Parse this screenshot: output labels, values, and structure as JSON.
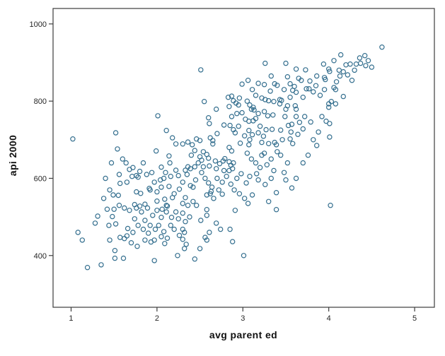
{
  "chart_data": {
    "type": "scatter",
    "title": "",
    "xlabel": "avg parent ed",
    "ylabel": "api 2000",
    "x_ticks": [
      1,
      2,
      3,
      4,
      5
    ],
    "y_ticks": [
      400,
      600,
      800,
      1000
    ],
    "xlim": [
      0.79,
      5.23
    ],
    "ylim": [
      266,
      1040
    ],
    "grid": false,
    "legend": "none",
    "frame_color": "#3d3d3d",
    "marker": {
      "shape": "circle-open",
      "color": "#336e8e",
      "radius": 3.1,
      "stroke_width": 1.2
    },
    "points": [
      [
        2.51,
        881
      ],
      [
        2.55,
        799
      ],
      [
        3.26,
        898
      ],
      [
        3.33,
        865
      ],
      [
        2.99,
        844
      ],
      [
        3.06,
        854
      ],
      [
        3.11,
        830
      ],
      [
        3.18,
        846
      ],
      [
        3.25,
        843
      ],
      [
        3.32,
        826
      ],
      [
        3.37,
        845
      ],
      [
        3.4,
        841
      ],
      [
        3.43,
        804
      ],
      [
        3.45,
        802
      ],
      [
        3.5,
        898
      ],
      [
        3.52,
        863
      ],
      [
        3.62,
        883
      ],
      [
        3.65,
        859
      ],
      [
        3.68,
        854
      ],
      [
        3.73,
        881
      ],
      [
        3.58,
        828
      ],
      [
        3.62,
        823
      ],
      [
        3.74,
        832
      ],
      [
        2.83,
        810
      ],
      [
        2.87,
        813
      ],
      [
        2.89,
        801
      ],
      [
        2.92,
        795
      ],
      [
        2.96,
        808
      ],
      [
        2.84,
        786
      ],
      [
        3.12,
        784
      ],
      [
        3.26,
        804
      ],
      [
        3.3,
        801
      ],
      [
        3.36,
        799
      ],
      [
        3.43,
        793
      ],
      [
        3.61,
        788
      ],
      [
        4.62,
        940
      ],
      [
        4.14,
        920
      ],
      [
        4.36,
        912
      ],
      [
        4.42,
        918
      ],
      [
        4.32,
        896
      ],
      [
        4.25,
        896
      ],
      [
        3.94,
        896
      ],
      [
        4.06,
        905
      ],
      [
        4.0,
        883
      ],
      [
        4.01,
        877
      ],
      [
        3.86,
        865
      ],
      [
        3.95,
        861
      ],
      [
        3.96,
        856
      ],
      [
        4.09,
        850
      ],
      [
        4.13,
        865
      ],
      [
        4.17,
        876
      ],
      [
        4.43,
        892
      ],
      [
        4.27,
        854
      ],
      [
        4.06,
        835
      ],
      [
        4.08,
        830
      ],
      [
        3.77,
        832
      ],
      [
        3.82,
        824
      ],
      [
        4.17,
        812
      ],
      [
        4.03,
        799
      ],
      [
        4.0,
        793
      ],
      [
        4.08,
        793
      ],
      [
        4.2,
        894
      ],
      [
        4.37,
        898
      ],
      [
        1.02,
        702
      ],
      [
        2.01,
        762
      ],
      [
        1.52,
        718
      ],
      [
        1.54,
        676
      ],
      [
        2.11,
        724
      ],
      [
        2.18,
        705
      ],
      [
        2.22,
        689
      ],
      [
        1.99,
        671
      ],
      [
        2.14,
        658
      ],
      [
        1.47,
        640
      ],
      [
        1.56,
        610
      ],
      [
        1.68,
        623
      ],
      [
        1.71,
        605
      ],
      [
        1.76,
        607
      ],
      [
        1.78,
        603
      ],
      [
        1.57,
        587
      ],
      [
        1.65,
        590
      ],
      [
        2.04,
        596
      ],
      [
        1.97,
        590
      ],
      [
        2.05,
        629
      ],
      [
        2.14,
        579
      ],
      [
        2.05,
        577
      ],
      [
        1.49,
        557
      ],
      [
        1.55,
        556
      ],
      [
        1.76,
        565
      ],
      [
        1.81,
        561
      ],
      [
        1.91,
        574
      ],
      [
        1.92,
        570
      ],
      [
        2.0,
        565
      ],
      [
        2.09,
        546
      ],
      [
        2.18,
        550
      ],
      [
        1.74,
        532
      ],
      [
        1.8,
        528
      ],
      [
        1.86,
        533
      ],
      [
        2.0,
        541
      ],
      [
        2.11,
        530
      ],
      [
        2.22,
        621
      ],
      [
        2.25,
        607
      ],
      [
        3.79,
        746
      ],
      [
        4.01,
        742
      ],
      [
        4.01,
        707
      ],
      [
        3.86,
        685
      ],
      [
        4.0,
        784
      ],
      [
        4.02,
        530
      ],
      [
        1.08,
        460
      ],
      [
        1.13,
        440
      ],
      [
        1.28,
        484
      ],
      [
        1.31,
        502
      ],
      [
        1.48,
        501
      ],
      [
        1.45,
        440
      ],
      [
        1.52,
        482
      ],
      [
        1.51,
        413
      ],
      [
        1.51,
        393
      ],
      [
        1.61,
        393
      ],
      [
        1.35,
        376
      ],
      [
        1.57,
        447
      ],
      [
        1.62,
        444
      ],
      [
        1.65,
        451
      ],
      [
        1.7,
        433
      ],
      [
        1.77,
        424
      ],
      [
        1.86,
        440
      ],
      [
        1.93,
        435
      ],
      [
        1.97,
        440
      ],
      [
        2.05,
        449
      ],
      [
        2.09,
        431
      ],
      [
        2.24,
        400
      ],
      [
        1.97,
        387
      ],
      [
        1.19,
        369
      ],
      [
        1.62,
        523
      ],
      [
        1.68,
        517
      ],
      [
        1.76,
        523
      ],
      [
        1.82,
        513
      ],
      [
        1.89,
        523
      ],
      [
        1.95,
        504
      ],
      [
        2.0,
        517
      ],
      [
        2.05,
        499
      ],
      [
        2.11,
        513
      ],
      [
        2.17,
        499
      ],
      [
        2.22,
        513
      ],
      [
        2.25,
        495
      ],
      [
        1.86,
        491
      ],
      [
        1.74,
        495
      ],
      [
        2.58,
        519
      ],
      [
        3.39,
        519
      ],
      [
        2.91,
        517
      ],
      [
        2.58,
        504
      ],
      [
        2.51,
        491
      ],
      [
        2.69,
        484
      ],
      [
        2.74,
        468
      ],
      [
        2.85,
        468
      ],
      [
        2.61,
        460
      ],
      [
        2.56,
        447
      ],
      [
        2.58,
        440
      ],
      [
        2.33,
        488
      ],
      [
        2.3,
        468
      ],
      [
        2.32,
        460
      ],
      [
        2.3,
        442
      ],
      [
        2.34,
        429
      ],
      [
        2.32,
        418
      ],
      [
        2.88,
        436
      ],
      [
        3.01,
        400
      ],
      [
        2.44,
        391
      ],
      [
        2.5,
        418
      ],
      [
        2.69,
        779
      ],
      [
        2.6,
        757
      ],
      [
        2.61,
        742
      ],
      [
        2.87,
        760
      ],
      [
        2.93,
        768
      ],
      [
        2.99,
        770
      ],
      [
        3.1,
        779
      ],
      [
        3.13,
        777
      ],
      [
        3.18,
        768
      ],
      [
        3.25,
        773
      ],
      [
        3.29,
        762
      ],
      [
        3.35,
        764
      ],
      [
        3.5,
        779
      ],
      [
        3.62,
        779
      ],
      [
        3.49,
        760
      ],
      [
        3.62,
        760
      ],
      [
        3.03,
        753
      ],
      [
        3.07,
        748
      ],
      [
        3.12,
        749
      ],
      [
        3.15,
        755
      ],
      [
        2.78,
        738
      ],
      [
        2.85,
        737
      ],
      [
        2.89,
        726
      ],
      [
        2.91,
        718
      ],
      [
        3.07,
        724
      ],
      [
        3.11,
        713
      ],
      [
        3.27,
        726
      ],
      [
        3.34,
        727
      ],
      [
        3.24,
        709
      ],
      [
        3.53,
        737
      ],
      [
        3.57,
        740
      ],
      [
        3.56,
        720
      ],
      [
        3.55,
        702
      ],
      [
        2.7,
        716
      ],
      [
        2.62,
        705
      ],
      [
        2.65,
        698
      ],
      [
        2.65,
        689
      ],
      [
        2.46,
        702
      ],
      [
        2.5,
        698
      ],
      [
        2.36,
        694
      ],
      [
        2.3,
        689
      ],
      [
        2.41,
        687
      ],
      [
        2.97,
        691
      ],
      [
        3.07,
        687
      ],
      [
        3.22,
        693
      ],
      [
        3.39,
        687
      ],
      [
        3.37,
        693
      ],
      [
        3.4,
        669
      ],
      [
        3.25,
        665
      ],
      [
        3.22,
        660
      ],
      [
        2.84,
        680
      ],
      [
        2.87,
        671
      ],
      [
        2.54,
        669
      ],
      [
        2.58,
        662
      ],
      [
        2.6,
        652
      ],
      [
        2.5,
        656
      ],
      [
        2.52,
        647
      ],
      [
        2.44,
        630
      ],
      [
        2.36,
        630
      ],
      [
        2.39,
        625
      ],
      [
        2.33,
        621
      ],
      [
        2.54,
        630
      ],
      [
        2.61,
        632
      ],
      [
        2.69,
        625
      ],
      [
        2.77,
        645
      ],
      [
        2.79,
        651
      ],
      [
        2.84,
        643
      ],
      [
        2.86,
        634
      ],
      [
        2.89,
        640
      ],
      [
        2.84,
        620
      ],
      [
        2.88,
        625
      ],
      [
        3.16,
        612
      ],
      [
        3.52,
        640
      ],
      [
        3.5,
        596
      ],
      [
        2.45,
        596
      ],
      [
        2.39,
        581
      ],
      [
        2.42,
        577
      ],
      [
        2.6,
        588
      ],
      [
        2.64,
        577
      ],
      [
        2.63,
        566
      ],
      [
        2.58,
        557
      ],
      [
        2.72,
        570
      ],
      [
        2.76,
        559
      ],
      [
        2.86,
        585
      ],
      [
        3.04,
        588
      ],
      [
        3.11,
        557
      ],
      [
        3.39,
        563
      ],
      [
        3.06,
        535
      ],
      [
        2.33,
        550
      ],
      [
        2.3,
        535
      ],
      [
        2.36,
        530
      ],
      [
        2.95,
        735
      ],
      [
        3.02,
        710
      ],
      [
        3.08,
        700
      ],
      [
        3.18,
        718
      ],
      [
        3.2,
        735
      ],
      [
        3.3,
        690
      ],
      [
        3.44,
        725
      ],
      [
        3.46,
        700
      ],
      [
        3.58,
        690
      ],
      [
        3.64,
        714
      ],
      [
        3.7,
        728
      ],
      [
        3.66,
        745
      ],
      [
        3.72,
        760
      ],
      [
        3.05,
        665
      ],
      [
        3.1,
        650
      ],
      [
        3.15,
        640
      ],
      [
        3.2,
        628
      ],
      [
        3.28,
        635
      ],
      [
        3.33,
        650
      ],
      [
        3.36,
        620
      ],
      [
        3.44,
        660
      ],
      [
        3.48,
        615
      ],
      [
        2.93,
        600
      ],
      [
        2.98,
        612
      ],
      [
        3.08,
        605
      ],
      [
        3.18,
        596
      ],
      [
        3.26,
        584
      ],
      [
        3.33,
        600
      ],
      [
        2.68,
        645
      ],
      [
        2.73,
        638
      ],
      [
        2.78,
        620
      ],
      [
        2.7,
        600
      ],
      [
        2.76,
        590
      ],
      [
        2.81,
        605
      ],
      [
        2.9,
        570
      ],
      [
        2.96,
        560
      ],
      [
        3.02,
        548
      ],
      [
        3.3,
        540
      ],
      [
        3.57,
        575
      ],
      [
        3.62,
        600
      ],
      [
        3.7,
        640
      ],
      [
        3.76,
        660
      ],
      [
        3.82,
        700
      ],
      [
        3.88,
        720
      ],
      [
        3.92,
        760
      ],
      [
        3.97,
        748
      ],
      [
        2.4,
        660
      ],
      [
        2.44,
        672
      ],
      [
        2.48,
        640
      ],
      [
        2.52,
        615
      ],
      [
        2.56,
        600
      ],
      [
        2.62,
        560
      ],
      [
        2.66,
        548
      ],
      [
        2.2,
        560
      ],
      [
        2.26,
        572
      ],
      [
        2.3,
        590
      ],
      [
        2.35,
        610
      ],
      [
        2.42,
        540
      ],
      [
        2.46,
        530
      ],
      [
        2.15,
        640
      ],
      [
        3.15,
        815
      ],
      [
        3.22,
        808
      ],
      [
        3.48,
        830
      ],
      [
        3.55,
        845
      ],
      [
        3.6,
        838
      ],
      [
        3.7,
        810
      ],
      [
        3.78,
        852
      ],
      [
        3.85,
        840
      ],
      [
        3.9,
        815
      ],
      [
        3.95,
        830
      ],
      [
        4.12,
        880
      ],
      [
        4.22,
        868
      ],
      [
        4.3,
        880
      ],
      [
        4.46,
        905
      ],
      [
        4.5,
        888
      ],
      [
        3.52,
        788
      ],
      [
        3.55,
        810
      ],
      [
        2.95,
        790
      ],
      [
        3.05,
        800
      ],
      [
        3.08,
        790
      ],
      [
        1.66,
        470
      ],
      [
        1.72,
        460
      ],
      [
        1.78,
        478
      ],
      [
        1.84,
        468
      ],
      [
        1.9,
        458
      ],
      [
        1.92,
        478
      ],
      [
        1.98,
        468
      ],
      [
        2.02,
        478
      ],
      [
        2.08,
        462
      ],
      [
        2.12,
        445
      ],
      [
        2.16,
        478
      ],
      [
        2.2,
        468
      ],
      [
        2.26,
        452
      ],
      [
        2.3,
        510
      ],
      [
        2.38,
        500
      ],
      [
        2.12,
        528
      ],
      [
        2.06,
        520
      ],
      [
        1.56,
        530
      ],
      [
        1.5,
        520
      ],
      [
        1.44,
        478
      ],
      [
        1.6,
        650
      ],
      [
        1.64,
        640
      ],
      [
        1.72,
        628
      ],
      [
        1.8,
        618
      ],
      [
        1.84,
        640
      ],
      [
        1.88,
        610
      ],
      [
        1.94,
        615
      ],
      [
        2.08,
        600
      ],
      [
        2.1,
        615
      ],
      [
        2.16,
        605
      ],
      [
        1.4,
        600
      ],
      [
        1.45,
        570
      ],
      [
        1.38,
        548
      ],
      [
        1.42,
        520
      ]
    ]
  }
}
